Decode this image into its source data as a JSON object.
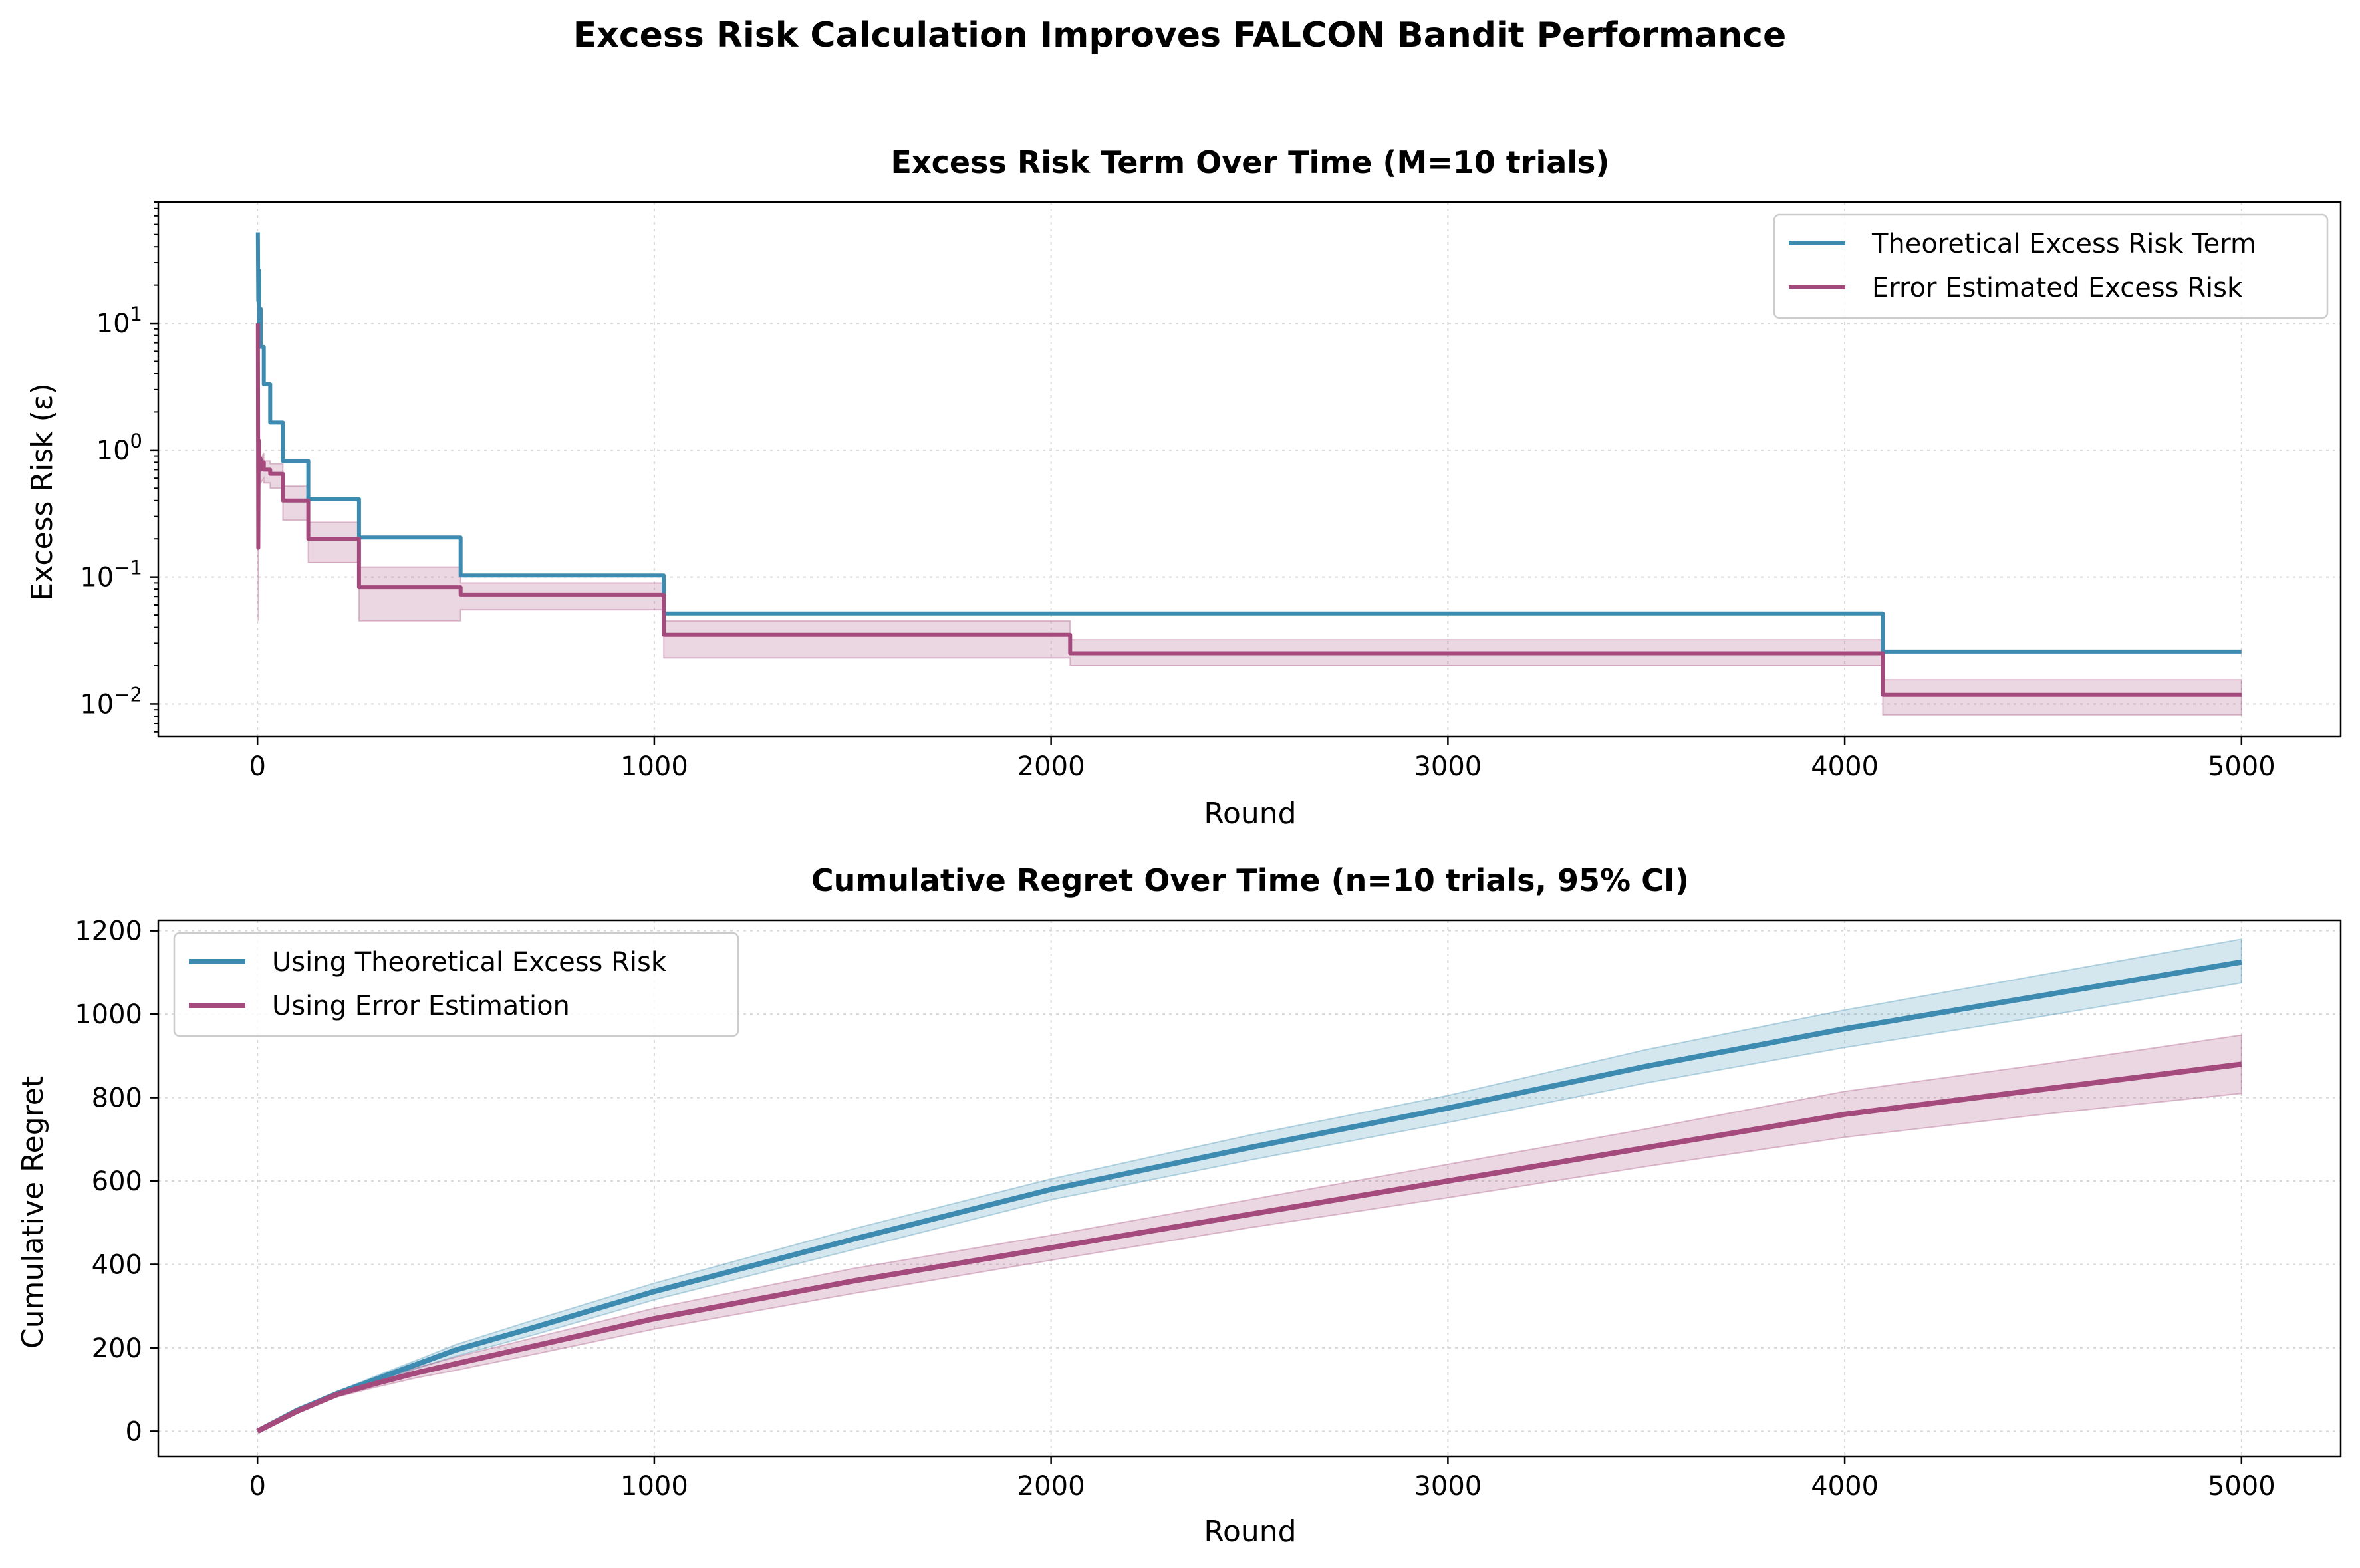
{
  "figure": {
    "suptitle": "Excess Risk Calculation Improves FALCON Bandit Performance"
  },
  "colors": {
    "theoretical": "#3d8bb0",
    "error": "#a44a7c",
    "theoretical_band": "#3d8bb0",
    "error_band": "#a44a7c"
  },
  "chart_data": [
    {
      "type": "line",
      "title": "Excess Risk Term Over Time (M=10 trials)",
      "xlabel": "Round",
      "ylabel": "Excess Risk (ε)",
      "yscale": "log",
      "xlim": [
        -250,
        5250
      ],
      "ylim": [
        0.0055,
        90
      ],
      "xticks": [
        0,
        1000,
        2000,
        3000,
        4000,
        5000
      ],
      "xtick_labels": [
        "0",
        "1000",
        "2000",
        "3000",
        "4000",
        "5000"
      ],
      "yticks": [
        0.01,
        0.1,
        1,
        10
      ],
      "ytick_labels": [
        {
          "base": "10",
          "exp": "−2"
        },
        {
          "base": "10",
          "exp": "−1"
        },
        {
          "base": "10",
          "exp": "0"
        },
        {
          "base": "10",
          "exp": "1"
        }
      ],
      "grid": true,
      "legend_position": "upper-right",
      "series": [
        {
          "name": "Theoretical Excess Risk Term",
          "color_key": "theoretical",
          "x": [
            1,
            2,
            4,
            4,
            8,
            8,
            16,
            16,
            32,
            32,
            64,
            64,
            128,
            128,
            256,
            256,
            512,
            512,
            1024,
            1024,
            2048,
            2048,
            4096,
            4096,
            5000
          ],
          "y": [
            52,
            15,
            26,
            10,
            13,
            6.5,
            6.5,
            3.3,
            3.3,
            1.65,
            1.65,
            0.82,
            0.82,
            0.41,
            0.41,
            0.205,
            0.205,
            0.103,
            0.103,
            0.0515,
            0.0515,
            0.0515,
            0.0515,
            0.0258,
            0.0258
          ]
        },
        {
          "name": "Error Estimated Excess Risk",
          "color_key": "error",
          "x": [
            1,
            2,
            3,
            4,
            8,
            8,
            16,
            16,
            32,
            32,
            64,
            64,
            128,
            128,
            256,
            256,
            512,
            512,
            1024,
            1024,
            2048,
            2048,
            4096,
            4096,
            5000
          ],
          "y": [
            10,
            0.17,
            1.2,
            0.75,
            0.85,
            0.7,
            0.8,
            0.7,
            0.7,
            0.65,
            0.65,
            0.4,
            0.4,
            0.2,
            0.2,
            0.083,
            0.083,
            0.072,
            0.072,
            0.035,
            0.035,
            0.025,
            0.025,
            0.0118,
            0.0118
          ],
          "ci_lower": [
            1,
            0.045,
            0.5,
            0.5,
            0.6,
            0.55,
            0.6,
            0.55,
            0.55,
            0.5,
            0.5,
            0.28,
            0.28,
            0.13,
            0.13,
            0.045,
            0.045,
            0.055,
            0.055,
            0.023,
            0.023,
            0.02,
            0.02,
            0.0082,
            0.0082
          ],
          "ci_upper": [
            11,
            0.9,
            1.5,
            1.0,
            1.1,
            0.85,
            0.95,
            0.82,
            0.82,
            0.78,
            0.78,
            0.52,
            0.52,
            0.27,
            0.27,
            0.12,
            0.12,
            0.09,
            0.09,
            0.045,
            0.045,
            0.032,
            0.032,
            0.0155,
            0.0155
          ]
        }
      ]
    },
    {
      "type": "line",
      "title": "Cumulative Regret Over Time (n=10 trials, 95% CI)",
      "xlabel": "Round",
      "ylabel": "Cumulative Regret",
      "yscale": "linear",
      "xlim": [
        -250,
        5250
      ],
      "ylim": [
        -60,
        1225
      ],
      "xticks": [
        0,
        1000,
        2000,
        3000,
        4000,
        5000
      ],
      "xtick_labels": [
        "0",
        "1000",
        "2000",
        "3000",
        "4000",
        "5000"
      ],
      "yticks": [
        0,
        200,
        400,
        600,
        800,
        1000,
        1200
      ],
      "ytick_labels": [
        "0",
        "200",
        "400",
        "600",
        "800",
        "1000",
        "1200"
      ],
      "grid": true,
      "legend_position": "upper-left",
      "series": [
        {
          "name": "Using Theoretical Excess Risk",
          "color_key": "theoretical",
          "x": [
            0,
            100,
            200,
            300,
            400,
            500,
            700,
            1000,
            1500,
            2000,
            2500,
            3000,
            3500,
            4000,
            4500,
            5000
          ],
          "y": [
            0,
            50,
            90,
            125,
            160,
            195,
            250,
            335,
            460,
            580,
            680,
            775,
            875,
            965,
            1045,
            1125
          ],
          "ci_lower": [
            0,
            48,
            85,
            118,
            150,
            180,
            232,
            315,
            435,
            555,
            650,
            740,
            835,
            920,
            995,
            1075
          ],
          "ci_upper": [
            0,
            53,
            95,
            133,
            170,
            208,
            268,
            355,
            485,
            605,
            710,
            805,
            915,
            1010,
            1095,
            1180
          ]
        },
        {
          "name": "Using Error Estimation",
          "color_key": "error",
          "x": [
            0,
            100,
            200,
            300,
            400,
            500,
            700,
            1000,
            1500,
            2000,
            2500,
            3000,
            3500,
            4000,
            4500,
            5000
          ],
          "y": [
            0,
            48,
            88,
            115,
            140,
            162,
            205,
            270,
            360,
            440,
            520,
            600,
            680,
            760,
            820,
            880
          ],
          "ci_lower": [
            0,
            45,
            82,
            106,
            128,
            146,
            185,
            245,
            330,
            410,
            488,
            560,
            635,
            705,
            760,
            810
          ],
          "ci_upper": [
            0,
            51,
            94,
            124,
            152,
            178,
            225,
            295,
            390,
            470,
            555,
            640,
            725,
            815,
            880,
            950
          ]
        }
      ]
    }
  ]
}
